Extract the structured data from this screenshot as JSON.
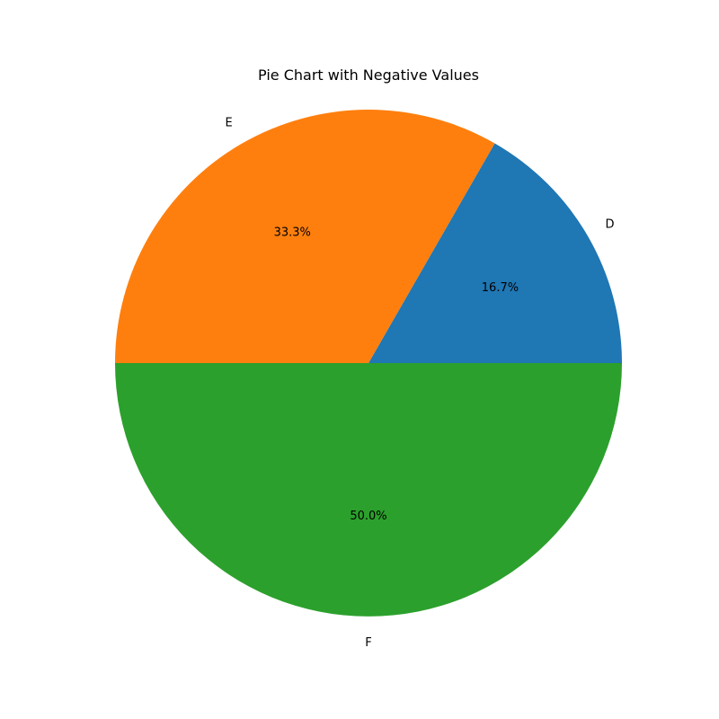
{
  "chart_data": {
    "type": "pie",
    "title": "Pie Chart with Negative Values",
    "slices": [
      {
        "label": "D",
        "value": 16.7,
        "pct_label": "16.7%",
        "color": "#1f77b4"
      },
      {
        "label": "E",
        "value": 33.3,
        "pct_label": "33.3%",
        "color": "#ff7f0e"
      },
      {
        "label": "F",
        "value": 50.0,
        "pct_label": "50.0%",
        "color": "#2ca02c"
      }
    ],
    "start_angle_deg": 0,
    "direction": "counterclockwise"
  }
}
